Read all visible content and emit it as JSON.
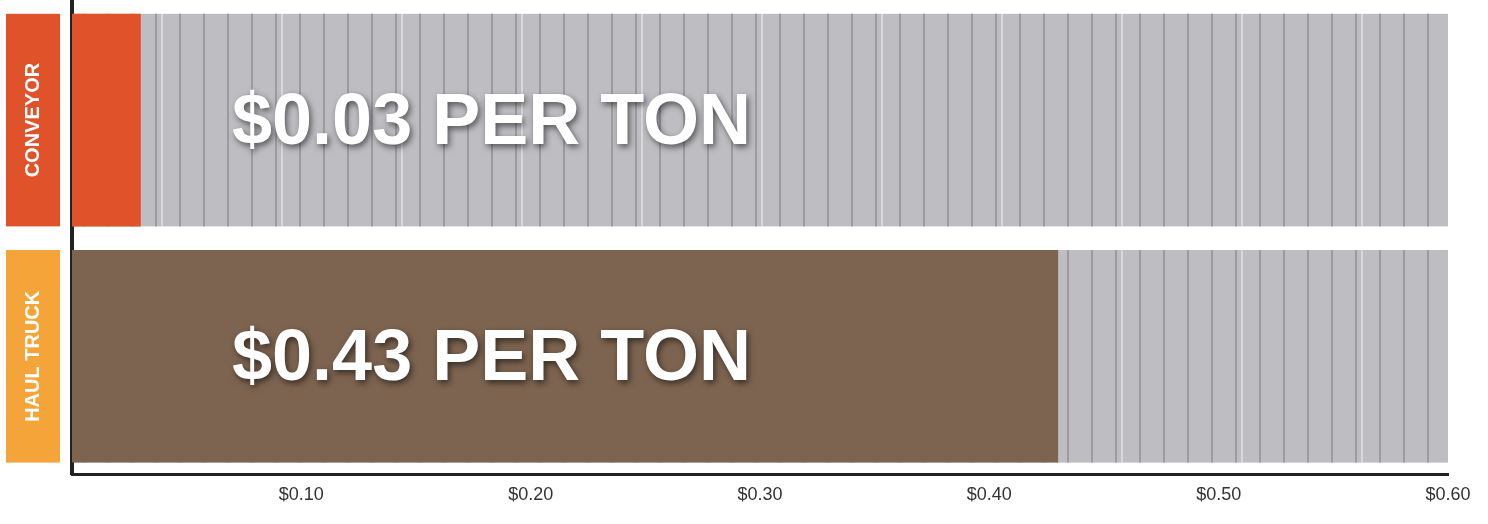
{
  "chart_data": {
    "type": "bar",
    "orientation": "horizontal",
    "categories": [
      "CONVEYOR",
      "HAUL TRUCK"
    ],
    "values": [
      0.03,
      0.43
    ],
    "value_labels": [
      "$0.03 PER TON",
      "$0.43 PER TON"
    ],
    "data_labels": true,
    "colors": [
      "#e0522a",
      "#7d6450"
    ],
    "xlim": [
      0,
      0.6
    ],
    "xticks": [
      {
        "value": 0.1,
        "label": "$0.10"
      },
      {
        "value": 0.2,
        "label": "$0.20"
      },
      {
        "value": 0.3,
        "label": "$0.30"
      },
      {
        "value": 0.4,
        "label": "$0.40"
      },
      {
        "value": 0.5,
        "label": "$0.50"
      },
      {
        "value": 0.6,
        "label": "$0.60"
      }
    ],
    "grid": false
  }
}
